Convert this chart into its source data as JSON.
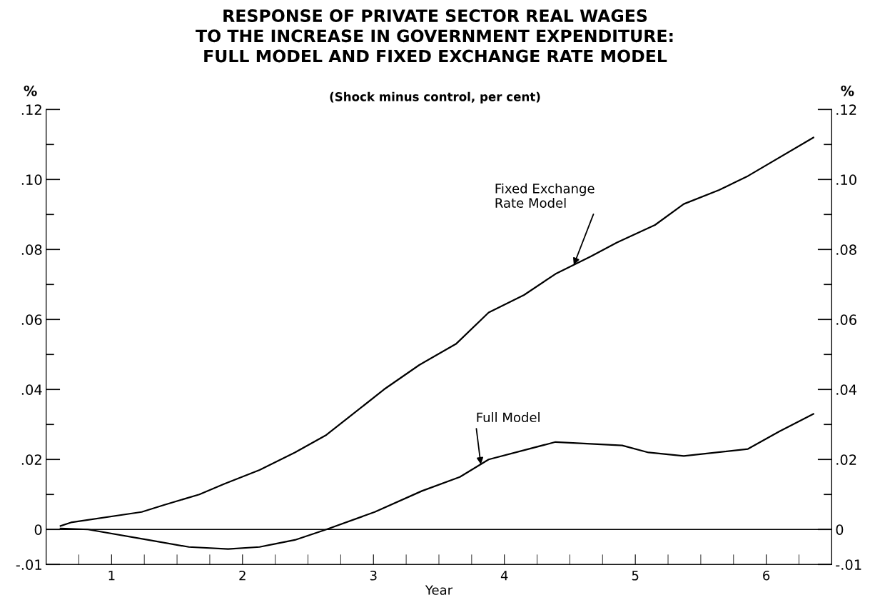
{
  "chart_data": {
    "type": "line",
    "title": "RESPONSE OF PRIVATE SECTOR REAL WAGES\nTO THE INCREASE IN GOVERNMENT EXPENDITURE:\nFULL MODEL AND FIXED EXCHANGE RATE MODEL",
    "subtitle": "(Shock minus control, per cent)",
    "xlabel": "Year",
    "ylabel": "%",
    "y2label": "%",
    "series": [
      {
        "color": "#000000",
        "x": [
          0.61,
          0.69,
          1.23,
          1.4,
          1.67,
          1.86,
          2.13,
          2.4,
          2.64,
          2.81,
          3.08,
          3.35,
          3.63,
          3.88,
          4.15,
          4.39,
          4.66,
          4.86,
          5.15,
          5.37,
          5.64,
          5.86,
          6.36
        ],
        "values": [
          0.001,
          0.002,
          0.005,
          0.007,
          0.01,
          0.013,
          0.017,
          0.022,
          0.027,
          0.032,
          0.04,
          0.047,
          0.053,
          0.062,
          0.067,
          0.073,
          0.078,
          0.082,
          0.087,
          0.093,
          0.097,
          0.101,
          0.112
        ]
      },
      {
        "color": "#000000",
        "x": [
          0.61,
          0.82,
          1.28,
          1.59,
          1.89,
          2.13,
          2.4,
          2.64,
          3.01,
          3.37,
          3.66,
          3.88,
          4.39,
          4.9,
          5.1,
          5.37,
          5.86,
          6.1,
          6.36
        ],
        "values": [
          0.0003,
          0,
          -0.003,
          -0.005,
          -0.0056,
          -0.005,
          -0.003,
          0,
          0.005,
          0.011,
          0.015,
          0.02,
          0.025,
          0.024,
          0.022,
          0.021,
          0.023,
          0.028,
          0.033
        ]
      }
    ],
    "xlim": [
      0.5,
      6.5
    ],
    "xticks": [
      {
        "value": 0.75,
        "label": null
      },
      1,
      {
        "value": 1.25,
        "label": null
      },
      {
        "value": 1.5,
        "label": null
      },
      {
        "value": 1.75,
        "label": null
      },
      2,
      {
        "value": 2.25,
        "label": null
      },
      {
        "value": 2.5,
        "label": null
      },
      {
        "value": 2.75,
        "label": null
      },
      3,
      {
        "value": 3.25,
        "label": null
      },
      {
        "value": 3.5,
        "label": null
      },
      {
        "value": 3.75,
        "label": null
      },
      4,
      {
        "value": 4.25,
        "label": null
      },
      {
        "value": 4.5,
        "label": null
      },
      {
        "value": 4.75,
        "label": null
      },
      5,
      {
        "value": 5.25,
        "label": null
      },
      {
        "value": 5.5,
        "label": null
      },
      {
        "value": 5.75,
        "label": null
      },
      6,
      {
        "value": 6.25,
        "label": null
      }
    ],
    "ylim": [
      -0.01,
      0.12
    ],
    "yticks": [
      {
        "value": -0.01,
        "label": "-.01"
      },
      0,
      {
        "value": 0.01,
        "label": null
      },
      {
        "value": 0.02,
        "label": ".02"
      },
      {
        "value": 0.03,
        "label": null
      },
      {
        "value": 0.04,
        "label": ".04"
      },
      {
        "value": 0.05,
        "label": null
      },
      {
        "value": 0.06,
        "label": ".06"
      },
      {
        "value": 0.07,
        "label": null
      },
      {
        "value": 0.08,
        "label": ".08"
      },
      {
        "value": 0.09,
        "label": null
      },
      {
        "value": 0.1,
        "label": ".10"
      },
      {
        "value": 0.11,
        "label": null
      },
      {
        "value": 0.12,
        "label": ".12"
      }
    ],
    "y2lim": [
      -0.01,
      0.12
    ],
    "y2ticks": [
      {
        "value": -0.01,
        "label": "-.01"
      },
      0,
      {
        "value": 0.01,
        "label": null
      },
      {
        "value": 0.02,
        "label": ".02"
      },
      {
        "value": 0.03,
        "label": null
      },
      {
        "value": 0.04,
        "label": ".04"
      },
      {
        "value": 0.05,
        "label": null
      },
      {
        "value": 0.06,
        "label": ".06"
      },
      {
        "value": 0.07,
        "label": null
      },
      {
        "value": 0.08,
        "label": ".08"
      },
      {
        "value": 0.09,
        "label": null
      },
      {
        "value": 0.1,
        "label": ".10"
      },
      {
        "value": 0.11,
        "label": null
      },
      {
        "value": 0.12,
        "label": ".12"
      }
    ],
    "ref_lines": [
      {
        "axis": "y",
        "value": 0,
        "color": "#000000"
      }
    ],
    "annotations": [
      {
        "text": "Fixed Exchange\nRate Model",
        "x": 4.53,
        "y": 0.0756
      },
      {
        "text": "Full Model",
        "x": 3.82,
        "y": 0.0186
      }
    ],
    "grid": false,
    "legend": false,
    "marker": "none",
    "line_style": "solid"
  }
}
